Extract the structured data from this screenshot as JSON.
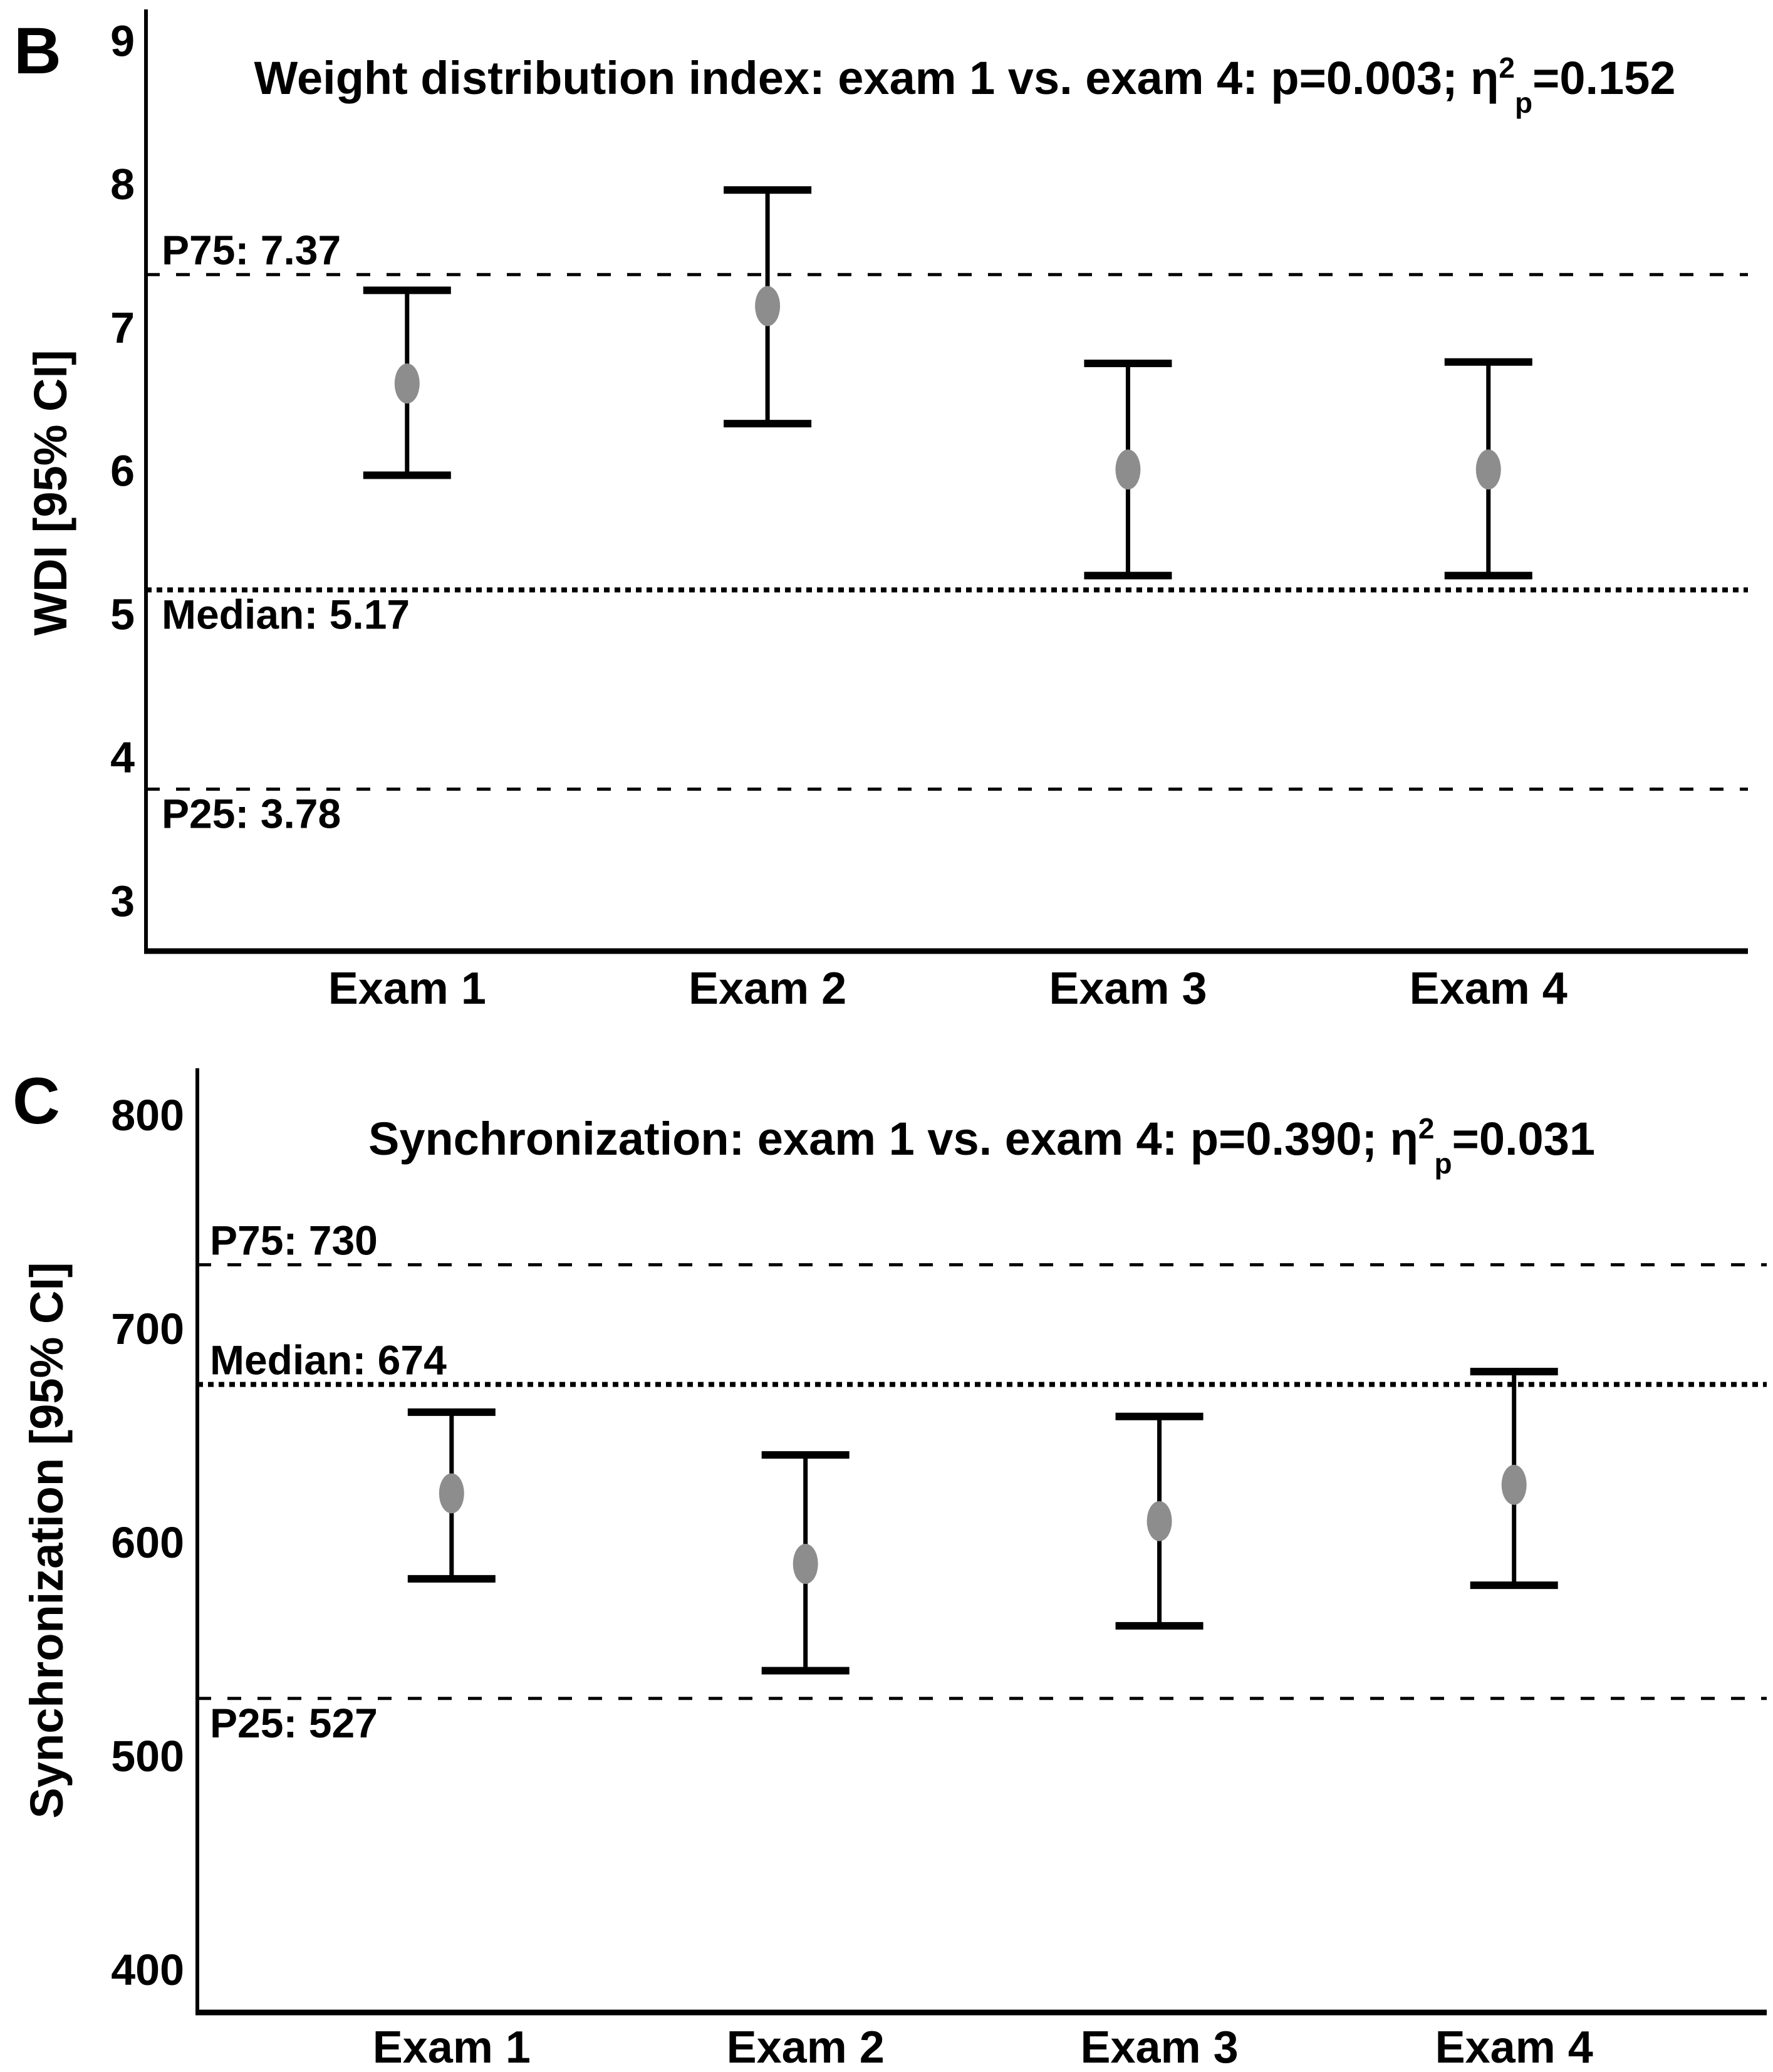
{
  "figure": {
    "background": "#ffffff",
    "line_color": "#000000",
    "mean_dot_color": "#8d8d8d",
    "text_color": "#000000"
  },
  "chart_data": [
    {
      "type": "scatter",
      "subtype": "error-bar-point-plot",
      "panel_label": "B",
      "title": "Weight distribution index: exam 1 vs. exam 4: p=0.003; η²p=0.152",
      "title_parts": {
        "prefix": "Weight distribution index: exam 1 vs. exam 4: p=0.003; η",
        "sup": "2",
        "sub": "p",
        "suffix": "=0.152"
      },
      "ylabel": "WDI [95% CI]",
      "xlabel": "",
      "categories": [
        "Exam 1",
        "Exam 2",
        "Exam 3",
        "Exam 4"
      ],
      "series": [
        {
          "name": "mean",
          "values": [
            6.61,
            7.15,
            6.01,
            6.01
          ]
        },
        {
          "name": "ci_lower_95",
          "values": [
            5.97,
            6.33,
            5.27,
            5.27
          ]
        },
        {
          "name": "ci_upper_95",
          "values": [
            7.26,
            7.96,
            6.75,
            6.76
          ]
        }
      ],
      "reference_lines": [
        {
          "label": "P75: 7.37",
          "value": 7.37,
          "style": "dashed",
          "label_side": "above"
        },
        {
          "label": "Median: 5.17",
          "value": 5.17,
          "style": "dotted",
          "label_side": "below"
        },
        {
          "label": "P25: 3.78",
          "value": 3.78,
          "style": "dashed",
          "label_side": "below"
        }
      ],
      "yticks": [
        9,
        8,
        7,
        6,
        5,
        4,
        3
      ],
      "ylim": [
        2.65,
        9.22
      ],
      "grid": false,
      "legend": "none"
    },
    {
      "type": "scatter",
      "subtype": "error-bar-point-plot",
      "panel_label": "C",
      "title": "Synchronization: exam 1 vs. exam 4: p=0.390; η²p=0.031",
      "title_parts": {
        "prefix": "Synchronization: exam 1 vs. exam 4: p=0.390; η",
        "sup": "2",
        "sub": "p",
        "suffix": "=0.031"
      },
      "ylabel": "Synchronization [95% CI]",
      "xlabel": "",
      "categories": [
        "Exam 1",
        "Exam 2",
        "Exam 3",
        "Exam 4"
      ],
      "series": [
        {
          "name": "mean",
          "values": [
            623,
            590,
            610,
            627
          ]
        },
        {
          "name": "ci_lower_95",
          "values": [
            583,
            540,
            561,
            580
          ]
        },
        {
          "name": "ci_upper_95",
          "values": [
            661,
            641,
            659,
            680
          ]
        }
      ],
      "reference_lines": [
        {
          "label": "P75: 730",
          "value": 730,
          "style": "dashed",
          "label_side": "above"
        },
        {
          "label": "Median: 674",
          "value": 674,
          "style": "dotted",
          "label_side": "above"
        },
        {
          "label": "P25: 527",
          "value": 527,
          "style": "dashed",
          "label_side": "below"
        }
      ],
      "yticks": [
        800,
        700,
        600,
        500,
        400
      ],
      "ylim": [
        380,
        822
      ],
      "grid": false,
      "legend": "none"
    }
  ]
}
